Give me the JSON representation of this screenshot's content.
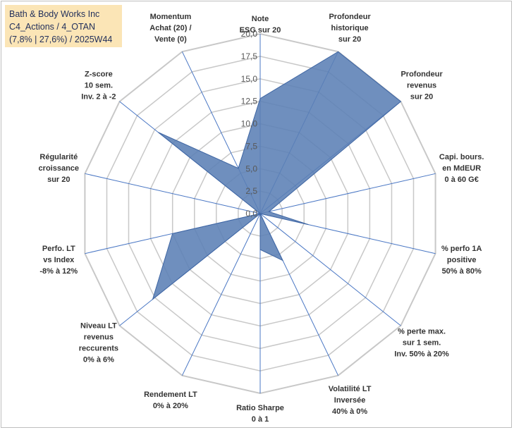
{
  "title_box": {
    "line1": "Bath & Body Works Inc",
    "line2": "C4_Actions / 4_OTAN",
    "line3": "(7,8% | 27,6%) / 2025W44"
  },
  "chart_data": {
    "type": "radar",
    "title": "Bath & Body Works Inc",
    "range": [
      0,
      20
    ],
    "ticks": [
      0,
      2.5,
      5,
      7.5,
      10,
      12.5,
      15,
      17.5,
      20
    ],
    "tick_labels": [
      "0,0",
      "2,5",
      "5,0",
      "7,5",
      "10,0",
      "12,5",
      "15,0",
      "17,5",
      "20,0"
    ],
    "grid": true,
    "axes": [
      {
        "label": [
          "Note",
          "ESG sur 20"
        ],
        "anchor": "middle"
      },
      {
        "label": [
          "Profondeur",
          "historique",
          "sur 20"
        ],
        "anchor": "middle"
      },
      {
        "label": [
          "Profondeur",
          "revenus",
          "sur 20"
        ],
        "anchor": "middle"
      },
      {
        "label": [
          "Capi. bours.",
          "en MdEUR",
          "0 à 60 G€"
        ],
        "anchor": "middle"
      },
      {
        "label": [
          "% perfo 1A",
          "positive",
          "50% à 80%"
        ],
        "anchor": "middle"
      },
      {
        "label": [
          "% perte max.",
          "sur 1 sem.",
          "Inv. 50% à 20%"
        ],
        "anchor": "middle"
      },
      {
        "label": [
          "Volatilité LT",
          "Inversée",
          "40% à 0%"
        ],
        "anchor": "middle"
      },
      {
        "label": [
          "Ratio Sharpe",
          "0 à 1"
        ],
        "anchor": "middle"
      },
      {
        "label": [
          "Rendement LT",
          "0% à 20%"
        ],
        "anchor": "middle"
      },
      {
        "label": [
          "Niveau LT",
          "revenus",
          "reccurents",
          "0% à 6%"
        ],
        "anchor": "middle"
      },
      {
        "label": [
          "Perfo. LT",
          "vs Index",
          "-8% à 12%"
        ],
        "anchor": "middle"
      },
      {
        "label": [
          "Régularité",
          "croissance",
          "sur 20"
        ],
        "anchor": "middle"
      },
      {
        "label": [
          "Z-score",
          "10 sem.",
          "Inv. 2 à -2"
        ],
        "anchor": "middle"
      },
      {
        "label": [
          "Momentum",
          "Achat (20) /",
          "Vente (0)"
        ],
        "anchor": "middle"
      }
    ],
    "series": [
      {
        "name": "Bath & Body Works Inc",
        "color": "#5b7fb5",
        "values": [
          12.8,
          20.0,
          20.0,
          1.0,
          5.5,
          0.0,
          5.8,
          4.0,
          0.0,
          15.3,
          10.0,
          0.0,
          14.5,
          5.6
        ]
      }
    ]
  }
}
